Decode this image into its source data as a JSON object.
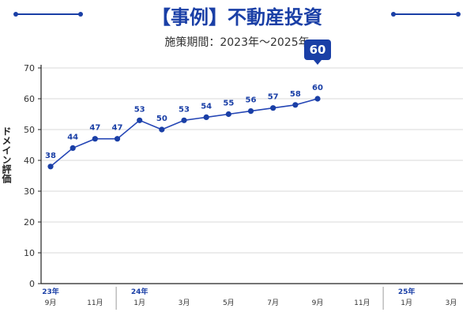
{
  "header": {
    "title": "【事例】不動産投資",
    "subtitle": "施策期間：2023年〜2025年"
  },
  "colors": {
    "primary": "#1a3fa6",
    "line": "#2445b5",
    "axis": "#222222",
    "grid": "#d9d9d9",
    "text": "#333333"
  },
  "chart_data": {
    "type": "line",
    "title": "【事例】不動産投資",
    "subtitle": "施策期間：2023年〜2025年",
    "xlabel": "",
    "ylabel": "ドメイン評価",
    "ylim": [
      0,
      70
    ],
    "yticks": [
      0,
      10,
      20,
      30,
      40,
      50,
      60,
      70
    ],
    "grid": true,
    "x_month_labels": [
      "9月",
      "",
      "11月",
      "",
      "1月",
      "",
      "3月",
      "",
      "5月",
      "",
      "7月",
      "",
      "9月",
      "",
      "11月",
      "",
      "1月",
      "",
      "3月"
    ],
    "x_year_labels": [
      {
        "label": "23年",
        "index": 0
      },
      {
        "label": "24年",
        "index": 4
      },
      {
        "label": "25年",
        "index": 16
      }
    ],
    "series": [
      {
        "values": [
          38,
          44,
          47,
          47,
          53,
          50,
          53,
          54,
          55,
          56,
          57,
          58,
          60
        ],
        "x_index": [
          0,
          1,
          2,
          3,
          4,
          5,
          6,
          7,
          8,
          9,
          10,
          11,
          12
        ],
        "data_labels": [
          "38",
          "44",
          "47",
          "47",
          "53",
          "50",
          "53",
          "54",
          "55",
          "56",
          "57",
          "58",
          "60"
        ]
      }
    ],
    "callout": {
      "value": "60",
      "index": 12
    }
  }
}
